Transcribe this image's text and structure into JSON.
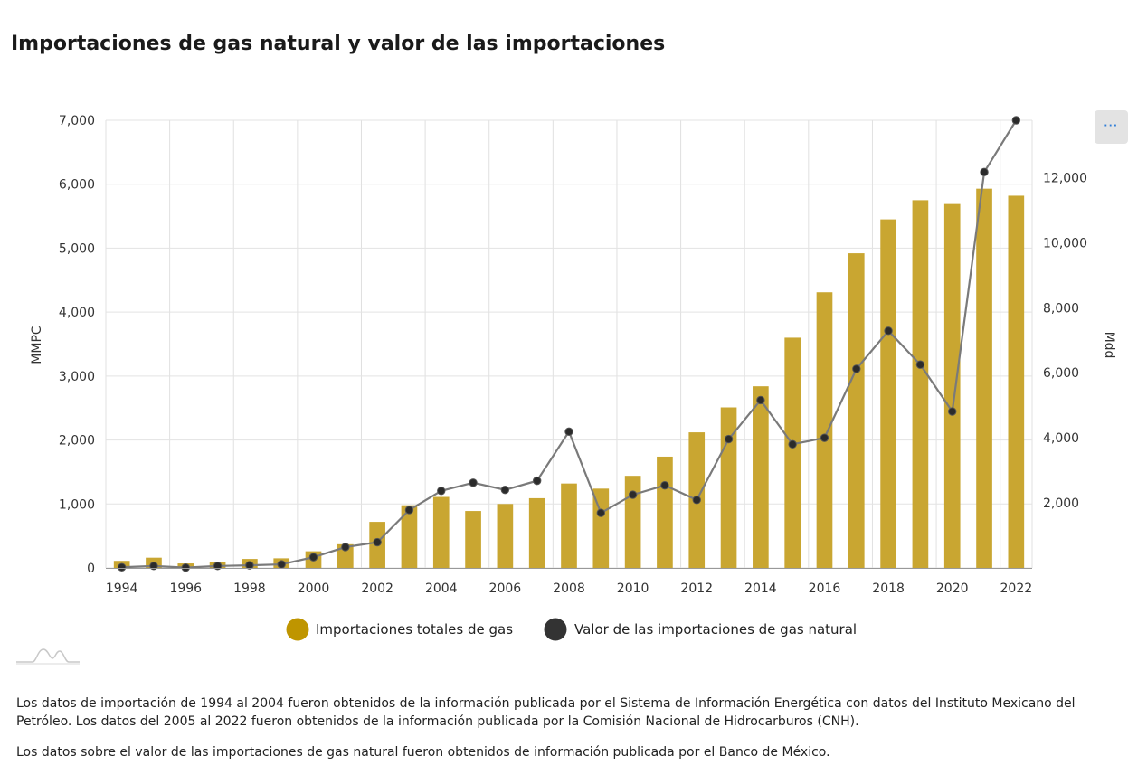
{
  "title": "Importaciones de gas natural y valor de las importaciones",
  "menu": {
    "label": "···",
    "icon": "menu-dots-icon"
  },
  "chart_data": {
    "type": "bar+line",
    "title": "Importaciones de gas natural y valor de las importaciones",
    "x": [
      1994,
      1995,
      1996,
      1997,
      1998,
      1999,
      2000,
      2001,
      2002,
      2003,
      2004,
      2005,
      2006,
      2007,
      2008,
      2009,
      2010,
      2011,
      2012,
      2013,
      2014,
      2015,
      2016,
      2017,
      2018,
      2019,
      2020,
      2021,
      2022
    ],
    "x_tick_labels": [
      "1994",
      "1996",
      "1998",
      "2000",
      "2002",
      "2004",
      "2006",
      "2008",
      "2010",
      "2012",
      "2014",
      "2016",
      "2018",
      "2020",
      "2022"
    ],
    "y_left": {
      "label": "MMPC",
      "range": [
        0,
        7000
      ],
      "ticks": [
        0,
        1000,
        2000,
        3000,
        4000,
        5000,
        6000,
        7000
      ],
      "tick_labels": [
        "0",
        "1,000",
        "2,000",
        "3,000",
        "4,000",
        "5,000",
        "6,000",
        "7,000"
      ]
    },
    "y_right": {
      "label": "Mdd",
      "range": [
        0,
        13764
      ],
      "ticks": [
        2000,
        4000,
        6000,
        8000,
        10000,
        12000
      ],
      "tick_labels": [
        "2,000",
        "4,000",
        "6,000",
        "8,000",
        "10,000",
        "12,000"
      ]
    },
    "series": [
      {
        "name": "Importaciones totales de gas",
        "type": "bar",
        "axis": "left",
        "color": "#c9a631",
        "legend_color": "#bf9500",
        "values": [
          110,
          160,
          70,
          90,
          140,
          150,
          260,
          370,
          720,
          980,
          1110,
          890,
          1000,
          1090,
          1320,
          1240,
          1440,
          1740,
          2120,
          2510,
          2840,
          3600,
          4310,
          4920,
          5450,
          5750,
          5690,
          5930,
          5820
        ]
      },
      {
        "name": "Valor de las importaciones de gas natural",
        "type": "line",
        "axis": "right",
        "color": "#7a7a7a",
        "marker_color": "#2b2b2b",
        "legend_color": "#333333",
        "values": [
          20,
          60,
          10,
          60,
          80,
          110,
          330,
          640,
          790,
          1780,
          2370,
          2620,
          2400,
          2680,
          4190,
          1690,
          2250,
          2540,
          2090,
          3960,
          5160,
          3800,
          4000,
          6120,
          7290,
          6250,
          4810,
          12170,
          13764
        ]
      }
    ],
    "grid": true,
    "legend": "bottom-center"
  },
  "notes": [
    "Los datos de importación de 1994 al 2004 fueron obtenidos de la información publicada por el Sistema de Información Energética con datos del Instituto Mexicano del Petróleo. Los datos del 2005 al 2022 fueron obtenidos de la información publicada por la Comisión Nacional de Hidrocarburos (CNH).",
    "Los datos sobre el valor de las importaciones de gas natural fueron obtenidos de información publicada por el Banco de México."
  ],
  "logo_icon": "mountain-logo-icon"
}
